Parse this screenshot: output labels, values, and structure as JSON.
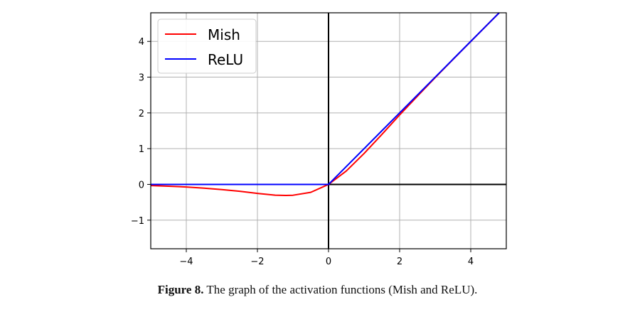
{
  "chart_data": {
    "type": "line",
    "x": [
      -5,
      -4.5,
      -4,
      -3.5,
      -3,
      -2.5,
      -2,
      -1.5,
      -1.2,
      -1,
      -0.5,
      0,
      0.5,
      1,
      1.5,
      2,
      2.5,
      3,
      3.5,
      4,
      4.5,
      4.8
    ],
    "series": [
      {
        "name": "Mish",
        "color": "#ff0000",
        "values": [
          -0.034,
          -0.05,
          -0.073,
          -0.105,
          -0.146,
          -0.192,
          -0.252,
          -0.302,
          -0.309,
          -0.303,
          -0.222,
          0,
          0.375,
          0.865,
          1.397,
          1.944,
          2.469,
          2.987,
          3.495,
          3.997,
          4.499,
          4.8
        ]
      },
      {
        "name": "ReLU",
        "color": "#0000ff",
        "values": [
          0,
          0,
          0,
          0,
          0,
          0,
          0,
          0,
          0,
          0,
          0,
          0,
          0.5,
          1,
          1.5,
          2,
          2.5,
          3,
          3.5,
          4,
          4.5,
          4.8
        ]
      }
    ],
    "xlim": [
      -5,
      5
    ],
    "ylim": [
      -1.8,
      4.8
    ],
    "xticks": [
      -4,
      -2,
      0,
      2,
      4
    ],
    "xtick_labels": [
      "−4",
      "−2",
      "0",
      "2",
      "4"
    ],
    "yticks": [
      -1,
      0,
      1,
      2,
      3,
      4
    ],
    "ytick_labels": [
      "−1",
      "0",
      "1",
      "2",
      "3",
      "4"
    ],
    "grid": true,
    "axis_lines_at_zero": true,
    "legend": {
      "position": "top-left",
      "entries": [
        "Mish",
        "ReLU"
      ]
    },
    "title": "",
    "xlabel": "",
    "ylabel": ""
  },
  "caption": {
    "label": "Figure 8.",
    "text": "The graph of the activation functions (Mish and ReLU)."
  }
}
